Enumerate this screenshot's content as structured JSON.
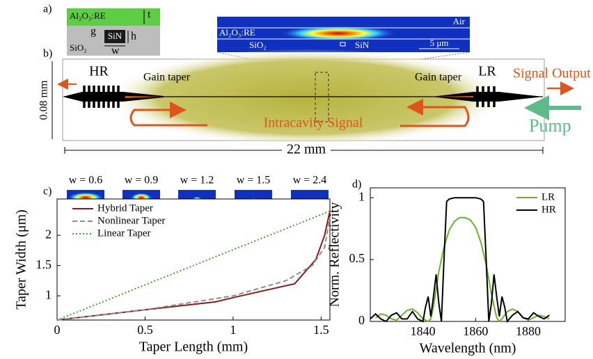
{
  "diagram": {
    "panel_a": {
      "label": "a)",
      "cladding_top": "Al₂O₃:RE",
      "thickness": "t",
      "gap": "g",
      "core": "SiN",
      "height": "h",
      "substrate": "SiO₂",
      "width": "w"
    },
    "mode_image": {
      "top": "Air",
      "film": "Al₂O₃:RE",
      "substrate": "SiO₂",
      "core": "SiN",
      "scale": "5 μm"
    },
    "panel_b": {
      "label": "b)",
      "left_mirror": "HR",
      "right_mirror": "LR",
      "left_taper": "Gain taper",
      "right_taper": "Gain taper",
      "output": "Signal Output",
      "signal": "Intracavity Signal",
      "pump": "Pump",
      "height": "0.08 mm",
      "length": "22 mm"
    },
    "mode_insets": {
      "labels": [
        "w = 0.6",
        "w = 0.9",
        "w = 1.2",
        "w = 1.5",
        "w = 2.4"
      ]
    }
  },
  "chart_data": [
    {
      "type": "line",
      "panel": "c)",
      "xlabel": "Taper Length (mm)",
      "ylabel": "Taper Width (μm)",
      "xlim": [
        0,
        1.55
      ],
      "ylim": [
        0.6,
        2.6
      ],
      "xticks": [
        0,
        0.5,
        1,
        1.5
      ],
      "yticks": [
        1,
        1.5,
        2
      ],
      "legend": "upper left",
      "series": [
        {
          "name": "Hybrid Taper",
          "color": "#8b1a1a",
          "line_style": "solid",
          "x": [
            0,
            0.5,
            0.9,
            1.0,
            1.35,
            1.47,
            1.52,
            1.55
          ],
          "values": [
            0.6,
            0.77,
            0.9,
            0.97,
            1.2,
            1.6,
            2.0,
            2.4
          ]
        },
        {
          "name": "Nonlinear Taper",
          "color": "#8c8c8c",
          "line_style": "dashed",
          "x": [
            0,
            0.5,
            1.0,
            1.3,
            1.45,
            1.52,
            1.55
          ],
          "values": [
            0.6,
            0.77,
            1.0,
            1.25,
            1.5,
            1.8,
            2.3
          ]
        },
        {
          "name": "Linear Taper",
          "color": "#3aa62a",
          "line_style": "dotted",
          "x": [
            0,
            1.55
          ],
          "values": [
            0.6,
            2.4
          ]
        }
      ]
    },
    {
      "type": "line",
      "panel": "d)",
      "xlabel": "Wavelength (nm)",
      "ylabel": "Norm. Reflectivity",
      "xlim": [
        1820,
        1894
      ],
      "ylim": [
        0,
        1.08
      ],
      "xticks": [
        1840,
        1860,
        1880
      ],
      "yticks": [
        0,
        0.5,
        1
      ],
      "legend": "upper right",
      "series": [
        {
          "name": "LR",
          "color": "#6ab42d",
          "line_style": "solid",
          "x": [
            1822,
            1824,
            1826,
            1828,
            1830,
            1832,
            1834,
            1836,
            1838,
            1840,
            1842,
            1843,
            1844,
            1846,
            1848,
            1850,
            1852,
            1854,
            1856,
            1858,
            1860,
            1862,
            1864,
            1866,
            1868,
            1869,
            1870,
            1872,
            1874,
            1876,
            1878,
            1880,
            1882,
            1884,
            1886,
            1888
          ],
          "values": [
            0.03,
            0.06,
            0.05,
            0.02,
            0.01,
            0.05,
            0.09,
            0.1,
            0.07,
            0.02,
            0.0,
            0.02,
            0.12,
            0.4,
            0.6,
            0.74,
            0.81,
            0.84,
            0.84,
            0.82,
            0.76,
            0.64,
            0.46,
            0.22,
            0.03,
            0.0,
            0.02,
            0.08,
            0.1,
            0.08,
            0.03,
            0.01,
            0.03,
            0.05,
            0.04,
            0.02
          ]
        },
        {
          "name": "HR",
          "color": "#000000",
          "line_style": "solid",
          "x": [
            1820,
            1822,
            1824,
            1826,
            1828,
            1830,
            1832,
            1834,
            1836,
            1838,
            1840,
            1841,
            1842,
            1843,
            1844,
            1845,
            1846,
            1847,
            1848,
            1849,
            1850,
            1852,
            1854,
            1856,
            1858,
            1860,
            1862,
            1863,
            1864,
            1865,
            1866,
            1867,
            1868,
            1869,
            1870,
            1871,
            1872,
            1874,
            1876,
            1878,
            1880,
            1882,
            1884,
            1886,
            1888
          ],
          "values": [
            0.02,
            0.06,
            0.02,
            0.0,
            0.05,
            0.07,
            0.02,
            0.02,
            0.08,
            0.02,
            0.0,
            0.12,
            0.2,
            0.04,
            0.2,
            0.38,
            0.15,
            0.0,
            0.5,
            0.97,
            0.99,
            1,
            1,
            1,
            1,
            1,
            0.99,
            0.97,
            0.5,
            0.0,
            0.15,
            0.38,
            0.2,
            0.04,
            0.2,
            0.12,
            0.0,
            0.05,
            0.08,
            0.03,
            0.02,
            0.07,
            0.04,
            0.02,
            0.05
          ]
        }
      ]
    }
  ]
}
